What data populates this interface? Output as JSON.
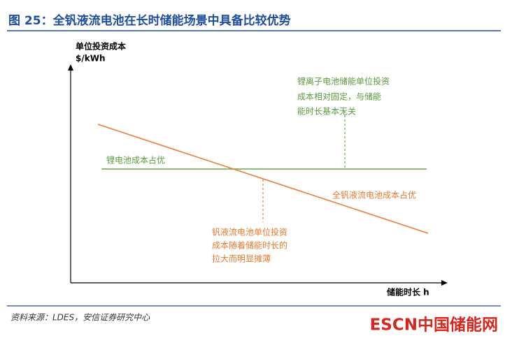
{
  "header": {
    "title": "图 25：全钒液流电池在长时储能场景中具备比较优势"
  },
  "diagram": {
    "y_axis_label": [
      "单位投资成本",
      "$/kWh"
    ],
    "x_axis_label": "储能时长 h",
    "lithium_line_label": "锂电池成本占优",
    "vanadium_line_label": "全钒液流电池成本占优",
    "lithium_note": [
      "锂离子电池储能单位投资",
      "成本相对固定，与储能",
      "能时长基本无关"
    ],
    "vanadium_note": [
      "钒液流电池单位投资",
      "成本随着储能时长的",
      "拉大而明显摊薄"
    ]
  },
  "footer": {
    "source": "资料来源：LDES，安信证券研究中心",
    "logo": "ESCN中国储能网"
  }
}
